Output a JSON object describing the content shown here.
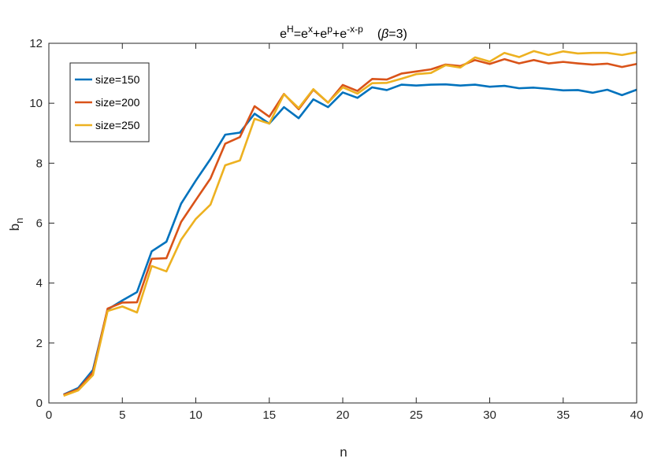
{
  "chart_data": {
    "type": "line",
    "title": {
      "base": "e",
      "sup_h": "H",
      "eq1": "=e",
      "sup_x": "x",
      "plus1": "+e",
      "sup_p": "p",
      "plus2": "+e",
      "sup_xp": "-x-p",
      "beta_symbol": "β",
      "beta_value": "=3)",
      "paren_open": "("
    },
    "xlabel": "n",
    "ylabel": {
      "main": "b",
      "sub": "n"
    },
    "xlim": [
      0,
      40
    ],
    "ylim": [
      0,
      12
    ],
    "xticks": [
      "0",
      "5",
      "10",
      "15",
      "20",
      "25",
      "30",
      "35",
      "40"
    ],
    "yticks": [
      "0",
      "2",
      "4",
      "6",
      "8",
      "10",
      "12"
    ],
    "grid": false,
    "legend_position": "top-left",
    "x": [
      1,
      2,
      3,
      4,
      5,
      6,
      7,
      8,
      9,
      10,
      11,
      12,
      13,
      14,
      15,
      16,
      17,
      18,
      19,
      20,
      21,
      22,
      23,
      24,
      25,
      26,
      27,
      28,
      29,
      30,
      31,
      32,
      33,
      34,
      35,
      36,
      37,
      38,
      39,
      40
    ],
    "series": [
      {
        "name": "size=150",
        "color": "#0072BD",
        "values": [
          0.28,
          0.5,
          1.1,
          3.12,
          3.42,
          3.7,
          5.06,
          5.38,
          6.65,
          7.42,
          8.14,
          8.95,
          9.02,
          9.65,
          9.32,
          9.87,
          9.5,
          10.13,
          9.87,
          10.36,
          10.18,
          10.53,
          10.44,
          10.62,
          10.59,
          10.62,
          10.63,
          10.59,
          10.62,
          10.55,
          10.58,
          10.5,
          10.52,
          10.48,
          10.43,
          10.44,
          10.35,
          10.45,
          10.27,
          10.45
        ]
      },
      {
        "name": "size=200",
        "color": "#D95319",
        "values": [
          0.27,
          0.46,
          1.02,
          3.15,
          3.35,
          3.36,
          4.81,
          4.83,
          6.04,
          6.77,
          7.49,
          8.65,
          8.87,
          9.9,
          9.55,
          10.31,
          9.8,
          10.45,
          10.02,
          10.61,
          10.41,
          10.81,
          10.79,
          10.99,
          11.06,
          11.13,
          11.29,
          11.24,
          11.44,
          11.31,
          11.47,
          11.33,
          11.44,
          11.33,
          11.38,
          11.33,
          11.29,
          11.32,
          11.21,
          11.31
        ]
      },
      {
        "name": "size=250",
        "color": "#EDB120",
        "values": [
          0.24,
          0.42,
          0.93,
          3.07,
          3.22,
          3.02,
          4.57,
          4.39,
          5.45,
          6.14,
          6.62,
          7.93,
          8.09,
          9.48,
          9.32,
          10.3,
          9.84,
          10.47,
          10.02,
          10.53,
          10.32,
          10.67,
          10.68,
          10.82,
          10.97,
          11.01,
          11.27,
          11.19,
          11.53,
          11.39,
          11.68,
          11.54,
          11.74,
          11.61,
          11.73,
          11.66,
          11.68,
          11.68,
          11.61,
          11.7
        ]
      }
    ]
  }
}
